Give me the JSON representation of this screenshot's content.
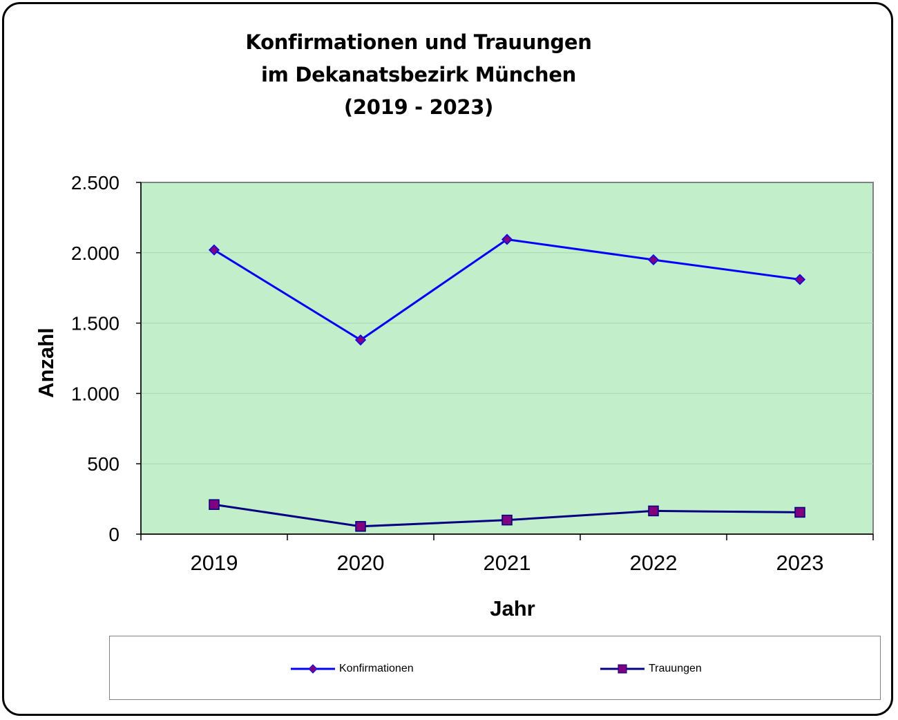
{
  "chart_data": {
    "type": "line",
    "title_lines": [
      "Konfirmationen und Trauungen",
      "im Dekanatsbezirk München",
      "(2019 - 2023)"
    ],
    "xlabel": "Jahr",
    "ylabel": "Anzahl",
    "categories": [
      "2019",
      "2020",
      "2021",
      "2022",
      "2023"
    ],
    "ylim": [
      0,
      2500
    ],
    "yticks": [
      0,
      500,
      1000,
      1500,
      2000,
      2500
    ],
    "ytick_labels": [
      "0",
      "500",
      "1.000",
      "1.500",
      "2.000",
      "2.500"
    ],
    "grid": true,
    "plot_background": "#c2efc9",
    "legend_position": "bottom",
    "series": [
      {
        "name": "Konfirmationen",
        "values": [
          2020,
          1380,
          2095,
          1950,
          1810
        ],
        "line_color": "#0000ff",
        "marker": "diamond",
        "marker_color": "#800080"
      },
      {
        "name": "Trauungen",
        "values": [
          210,
          55,
          100,
          165,
          155
        ],
        "line_color": "#000080",
        "marker": "square",
        "marker_color": "#800080"
      }
    ]
  }
}
